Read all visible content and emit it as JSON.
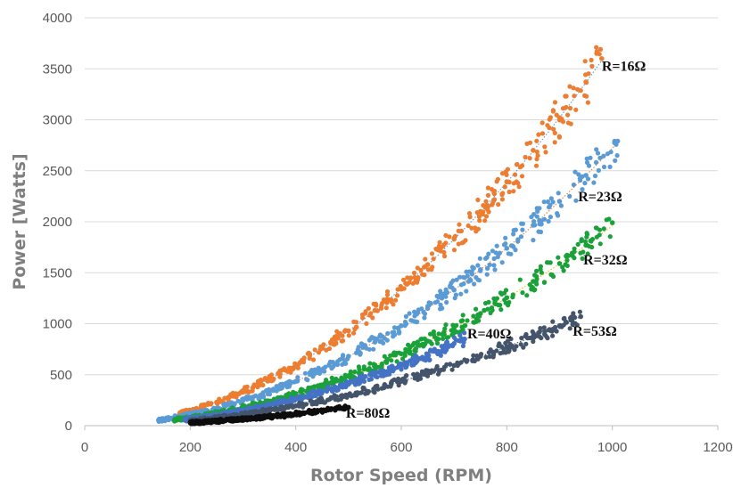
{
  "chart_data": {
    "type": "scatter",
    "title": "",
    "xlabel": "Rotor Speed (RPM)",
    "ylabel": "Power [Watts]",
    "xlim": [
      0,
      1200
    ],
    "ylim": [
      0,
      4000
    ],
    "x_ticks": [
      0,
      200,
      400,
      600,
      800,
      1000,
      1200
    ],
    "y_ticks": [
      0,
      500,
      1000,
      1500,
      2000,
      2500,
      3000,
      3500,
      4000
    ],
    "grid": "horizontal",
    "legend": "none",
    "series": [
      {
        "name": "R=16Ω",
        "color": "#ED7D31",
        "trend_color": "#5B9BD5",
        "range": [
          180,
          980
        ],
        "coef": 0.00373,
        "exp": 2.0,
        "label_at": [
          980,
          3480
        ],
        "points": [
          [
            180,
            120
          ],
          [
            250,
            230
          ],
          [
            300,
            330
          ],
          [
            350,
            460
          ],
          [
            400,
            600
          ],
          [
            450,
            760
          ],
          [
            500,
            930
          ],
          [
            550,
            1130
          ],
          [
            600,
            1340
          ],
          [
            650,
            1580
          ],
          [
            700,
            1830
          ],
          [
            750,
            2100
          ],
          [
            800,
            2390
          ],
          [
            850,
            2700
          ],
          [
            900,
            3020
          ],
          [
            950,
            3370
          ],
          [
            980,
            3600
          ]
        ]
      },
      {
        "name": "R=23Ω",
        "color": "#5B9BD5",
        "trend_color": "#ED7D31",
        "range": [
          140,
          1010
        ],
        "coef": 0.00272,
        "exp": 2.0,
        "label_at": [
          935,
          2200
        ],
        "points": [
          [
            140,
            55
          ],
          [
            200,
            110
          ],
          [
            250,
            170
          ],
          [
            300,
            245
          ],
          [
            350,
            335
          ],
          [
            400,
            435
          ],
          [
            450,
            550
          ],
          [
            500,
            680
          ],
          [
            550,
            820
          ],
          [
            600,
            980
          ],
          [
            650,
            1150
          ],
          [
            700,
            1330
          ],
          [
            750,
            1530
          ],
          [
            800,
            1740
          ],
          [
            850,
            1965
          ],
          [
            900,
            2200
          ],
          [
            950,
            2455
          ],
          [
            1010,
            2790
          ]
        ]
      },
      {
        "name": "R=32Ω",
        "color": "#1BA13A",
        "trend_color": "#FFC000",
        "range": [
          170,
          1000
        ],
        "coef": 0.00196,
        "exp": 2.0,
        "label_at": [
          945,
          1580
        ],
        "points": [
          [
            170,
            55
          ],
          [
            200,
            80
          ],
          [
            250,
            120
          ],
          [
            300,
            175
          ],
          [
            350,
            240
          ],
          [
            400,
            315
          ],
          [
            450,
            400
          ],
          [
            500,
            490
          ],
          [
            550,
            595
          ],
          [
            600,
            705
          ],
          [
            650,
            830
          ],
          [
            700,
            960
          ],
          [
            750,
            1100
          ],
          [
            800,
            1255
          ],
          [
            850,
            1415
          ],
          [
            900,
            1590
          ],
          [
            950,
            1770
          ],
          [
            1000,
            1990
          ]
        ]
      },
      {
        "name": "R=40Ω",
        "color": "#4472C4",
        "trend_color": "#4472C4",
        "range": [
          190,
          720
        ],
        "coef": 0.00164,
        "exp": 2.0,
        "label_at": [
          725,
          855
        ],
        "points": [
          [
            190,
            55
          ],
          [
            250,
            100
          ],
          [
            300,
            145
          ],
          [
            350,
            200
          ],
          [
            400,
            260
          ],
          [
            450,
            330
          ],
          [
            500,
            410
          ],
          [
            550,
            495
          ],
          [
            600,
            590
          ],
          [
            650,
            695
          ],
          [
            700,
            805
          ],
          [
            720,
            850
          ]
        ]
      },
      {
        "name": "R=53Ω",
        "color": "#44546A",
        "trend_color": "#44546A",
        "range": [
          200,
          940
        ],
        "coef": 0.00121,
        "exp": 2.0,
        "label_at": [
          925,
          880
        ],
        "points": [
          [
            200,
            50
          ],
          [
            250,
            75
          ],
          [
            300,
            110
          ],
          [
            350,
            150
          ],
          [
            400,
            195
          ],
          [
            450,
            245
          ],
          [
            500,
            300
          ],
          [
            550,
            365
          ],
          [
            600,
            435
          ],
          [
            650,
            510
          ],
          [
            700,
            590
          ],
          [
            750,
            680
          ],
          [
            800,
            775
          ],
          [
            850,
            875
          ],
          [
            900,
            980
          ],
          [
            940,
            1070
          ]
        ]
      },
      {
        "name": "R=80Ω",
        "color": "#0D0D0D",
        "trend_color": "#0D0D0D",
        "range": [
          200,
          500
        ],
        "coef": 0.00072,
        "exp": 2.0,
        "label_at": [
          495,
          80
        ],
        "points": [
          [
            200,
            30
          ],
          [
            250,
            45
          ],
          [
            300,
            65
          ],
          [
            350,
            90
          ],
          [
            400,
            115
          ],
          [
            450,
            145
          ],
          [
            500,
            180
          ]
        ]
      }
    ]
  }
}
